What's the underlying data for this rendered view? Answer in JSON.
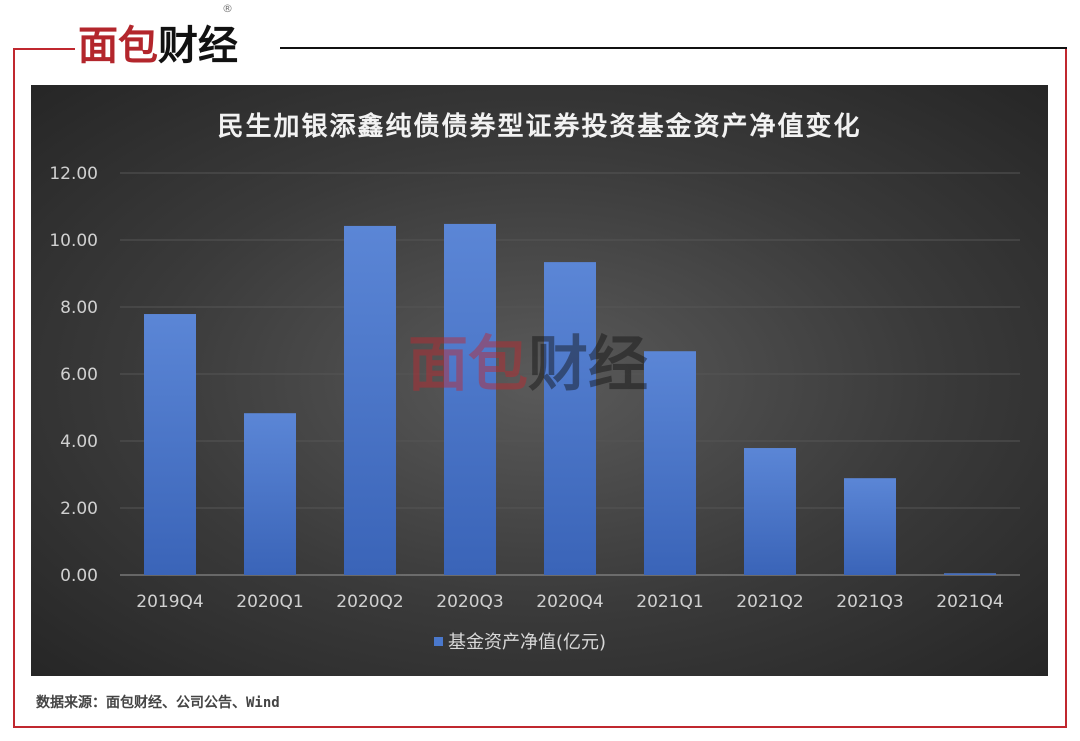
{
  "logo": {
    "text_red": "面包",
    "text_black": "财经",
    "registered": "®"
  },
  "source": "数据来源：面包财经、公司公告、Wind",
  "colors": {
    "bar": "#4472c4",
    "frame": "#c0282f",
    "background": "#3a3a3a"
  },
  "chart_data": {
    "type": "bar",
    "title": "民生加银添鑫纯债债券型证券投资基金资产净值变化",
    "categories": [
      "2019Q4",
      "2020Q1",
      "2020Q2",
      "2020Q3",
      "2020Q4",
      "2021Q1",
      "2021Q2",
      "2021Q3",
      "2021Q4"
    ],
    "series": [
      {
        "name": "基金资产净值(亿元)",
        "values": [
          7.79,
          4.83,
          10.42,
          10.48,
          9.34,
          6.68,
          3.79,
          2.89,
          0.05
        ]
      }
    ],
    "ylim": [
      0,
      12
    ],
    "yticks": [
      "0.00",
      "2.00",
      "4.00",
      "6.00",
      "8.00",
      "10.00",
      "12.00"
    ],
    "grid": true,
    "legend": "bottom"
  }
}
